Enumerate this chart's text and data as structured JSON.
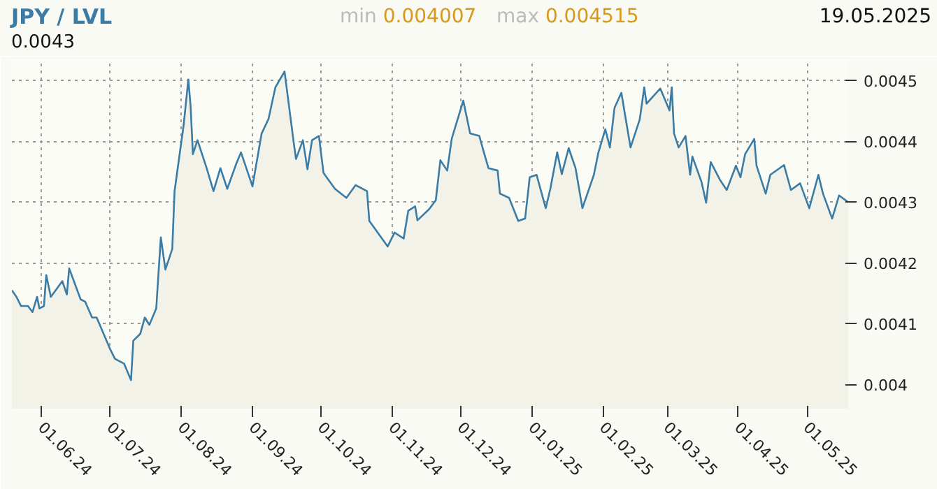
{
  "chart_data": {
    "type": "area",
    "title": "JPY / LVL",
    "subtitle": "19.05.2025",
    "annotations": [
      "min 0.004007",
      "max 0.004515",
      "0.0043"
    ],
    "x": [
      "2024-05-19",
      "2024-05-21",
      "2024-05-23",
      "2024-05-26",
      "2024-05-28",
      "2024-05-30",
      "2024-05-31",
      "2024-06-02",
      "2024-06-03",
      "2024-06-05",
      "2024-06-10",
      "2024-06-12",
      "2024-06-13",
      "2024-06-18",
      "2024-06-20",
      "2024-06-23",
      "2024-06-25",
      "2024-07-01",
      "2024-07-03",
      "2024-07-07",
      "2024-07-10",
      "2024-07-11",
      "2024-07-14",
      "2024-07-16",
      "2024-07-18",
      "2024-07-21",
      "2024-07-23",
      "2024-07-25",
      "2024-07-28",
      "2024-07-29",
      "2024-08-02",
      "2024-08-04",
      "2024-08-05",
      "2024-08-06",
      "2024-08-08",
      "2024-08-12",
      "2024-08-15",
      "2024-08-18",
      "2024-08-21",
      "2024-08-25",
      "2024-08-27",
      "2024-09-01",
      "2024-09-05",
      "2024-09-08",
      "2024-09-11",
      "2024-09-15",
      "2024-09-19",
      "2024-09-20",
      "2024-09-23",
      "2024-09-25",
      "2024-09-27",
      "2024-09-30",
      "2024-10-02",
      "2024-10-07",
      "2024-10-12",
      "2024-10-16",
      "2024-10-21",
      "2024-10-22",
      "2024-10-30",
      "2024-11-02",
      "2024-11-06",
      "2024-11-08",
      "2024-11-11",
      "2024-11-12",
      "2024-11-17",
      "2024-11-20",
      "2024-11-22",
      "2024-11-25",
      "2024-11-27",
      "2024-12-02",
      "2024-12-05",
      "2024-12-09",
      "2024-12-11",
      "2024-12-13",
      "2024-12-17",
      "2024-12-18",
      "2024-12-22",
      "2024-12-26",
      "2024-12-29",
      "2024-12-31",
      "2025-01-03",
      "2025-01-07",
      "2025-01-09",
      "2025-01-12",
      "2025-01-14",
      "2025-01-17",
      "2025-01-20",
      "2025-01-23",
      "2025-01-28",
      "2025-01-30",
      "2025-02-02",
      "2025-02-04",
      "2025-02-06",
      "2025-02-09",
      "2025-02-13",
      "2025-02-17",
      "2025-02-19",
      "2025-02-20",
      "2025-02-26",
      "2025-03-02",
      "2025-03-03",
      "2025-03-04",
      "2025-03-06",
      "2025-03-09",
      "2025-03-11",
      "2025-03-12",
      "2025-03-16",
      "2025-03-18",
      "2025-03-20",
      "2025-03-24",
      "2025-03-27",
      "2025-03-31",
      "2025-04-02",
      "2025-04-04",
      "2025-04-08",
      "2025-04-09",
      "2025-04-13",
      "2025-04-15",
      "2025-04-21",
      "2025-04-24",
      "2025-04-28",
      "2025-05-02",
      "2025-05-06",
      "2025-05-08",
      "2025-05-12",
      "2025-05-15",
      "2025-05-19"
    ],
    "series": [
      {
        "color": "#3a7ca5",
        "values": [
          0.004155,
          0.004144,
          0.004129,
          0.004129,
          0.004119,
          0.004144,
          0.004125,
          0.004129,
          0.00418,
          0.004144,
          0.00417,
          0.004148,
          0.004191,
          0.00414,
          0.004136,
          0.00411,
          0.00411,
          0.004057,
          0.004042,
          0.004034,
          0.004007,
          0.004072,
          0.004083,
          0.00411,
          0.004098,
          0.004125,
          0.004242,
          0.004189,
          0.004223,
          0.004318,
          0.004428,
          0.004502,
          0.004458,
          0.004379,
          0.004402,
          0.004356,
          0.004318,
          0.004356,
          0.004322,
          0.004364,
          0.004382,
          0.004326,
          0.004413,
          0.004437,
          0.004489,
          0.004515,
          0.004398,
          0.004371,
          0.004402,
          0.004354,
          0.004402,
          0.004409,
          0.004348,
          0.004322,
          0.004307,
          0.004328,
          0.004318,
          0.004269,
          0.004227,
          0.00425,
          0.00424,
          0.004286,
          0.004293,
          0.00427,
          0.004288,
          0.004303,
          0.004369,
          0.004352,
          0.004405,
          0.004467,
          0.004413,
          0.004409,
          0.004382,
          0.004356,
          0.004352,
          0.004314,
          0.004307,
          0.004269,
          0.004273,
          0.004341,
          0.004345,
          0.00429,
          0.004322,
          0.004382,
          0.004346,
          0.004389,
          0.004356,
          0.00429,
          0.004345,
          0.004382,
          0.00442,
          0.00439,
          0.004455,
          0.00448,
          0.00439,
          0.004436,
          0.004489,
          0.004462,
          0.004487,
          0.004451,
          0.004489,
          0.004413,
          0.00439,
          0.004409,
          0.004345,
          0.004375,
          0.004333,
          0.004299,
          0.004366,
          0.004337,
          0.00432,
          0.00436,
          0.004341,
          0.004379,
          0.004404,
          0.00436,
          0.004314,
          0.004345,
          0.004361,
          0.00432,
          0.004331,
          0.00429,
          0.004345,
          0.004314,
          0.004273,
          0.004311,
          0.0043
        ]
      }
    ],
    "xlim": [
      "2024-05-19",
      "2025-05-19"
    ],
    "xticks": [
      {
        "value": "2024-06-01",
        "label": "01.06.24"
      },
      {
        "value": "2024-07-01",
        "label": "01.07.24"
      },
      {
        "value": "2024-08-01",
        "label": "01.08.24"
      },
      {
        "value": "2024-09-01",
        "label": "01.09.24"
      },
      {
        "value": "2024-10-01",
        "label": "01.10.24"
      },
      {
        "value": "2024-11-01",
        "label": "01.11.24"
      },
      {
        "value": "2024-12-01",
        "label": "01.12.24"
      },
      {
        "value": "2025-01-01",
        "label": "01.01.25"
      },
      {
        "value": "2025-02-01",
        "label": "01.02.25"
      },
      {
        "value": "2025-03-01",
        "label": "01.03.25"
      },
      {
        "value": "2025-04-01",
        "label": "01.04.25"
      },
      {
        "value": "2025-05-01",
        "label": "01.05.25"
      }
    ],
    "ylim": [
      0.00396,
      0.004535
    ],
    "yticks": [
      0.004,
      0.0041,
      0.0042,
      0.0043,
      0.0044,
      0.0045
    ],
    "grid": true
  }
}
